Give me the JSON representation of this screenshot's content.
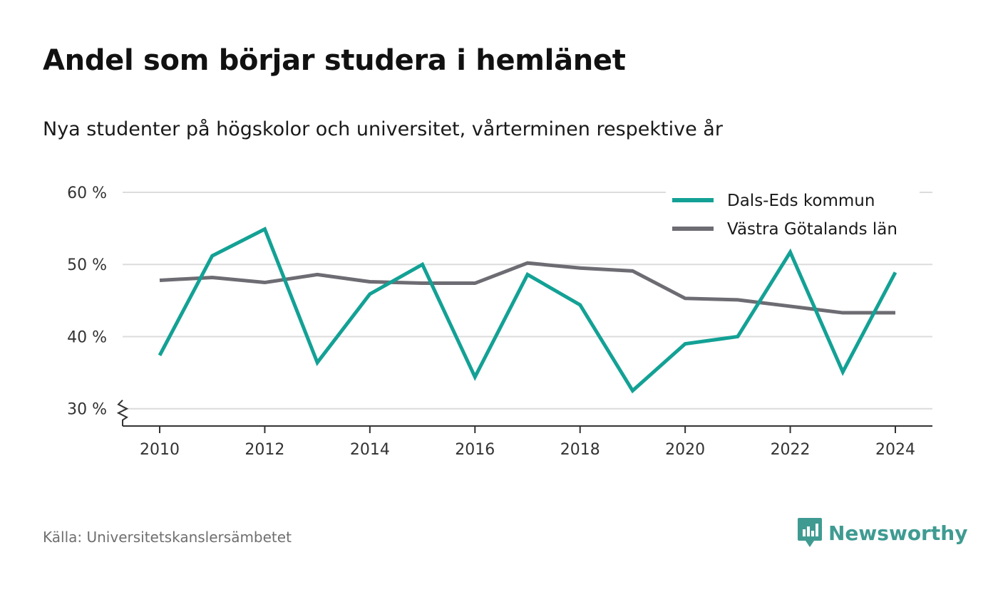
{
  "header": {
    "title": "Andel som börjar studera i hemlänet",
    "subtitle": "Nya studenter på högskolor och universitet, vårterminen respektive år"
  },
  "footer": {
    "source": "Källa: Universitetskanslersämbetet",
    "brand": "Newsworthy",
    "brand_icon": "newsworthy-logo-icon"
  },
  "colors": {
    "dals_ed": "#13a195",
    "vastra_gotaland": "#6d6c73",
    "grid": "#dcdcdc",
    "axis": "#333333",
    "brand": "#3f9b92"
  },
  "chart_data": {
    "type": "line",
    "x": [
      2010,
      2011,
      2012,
      2013,
      2014,
      2015,
      2016,
      2017,
      2018,
      2019,
      2020,
      2021,
      2022,
      2023,
      2024
    ],
    "x_ticks": [
      2010,
      2012,
      2014,
      2016,
      2018,
      2020,
      2022,
      2024
    ],
    "y_ticks": [
      30,
      40,
      50,
      60
    ],
    "y_tick_labels": [
      "30 %",
      "40 %",
      "50 %",
      "60 %"
    ],
    "ylim": [
      27.6,
      60
    ],
    "y_axis_break": true,
    "grid": true,
    "legend_position": "top-right",
    "series": [
      {
        "name": "Dals-Eds kommun",
        "color": "#13a195",
        "values": [
          37.4,
          51.2,
          54.9,
          36.4,
          45.9,
          50.0,
          34.4,
          48.6,
          44.4,
          32.5,
          39.0,
          40.0,
          51.7,
          35.1,
          48.9
        ]
      },
      {
        "name": "Västra Götalands län",
        "color": "#6d6c73",
        "values": [
          47.8,
          48.2,
          47.5,
          48.6,
          47.6,
          47.4,
          47.4,
          50.2,
          49.5,
          49.1,
          45.3,
          45.1,
          44.2,
          43.3,
          43.3
        ]
      }
    ]
  }
}
